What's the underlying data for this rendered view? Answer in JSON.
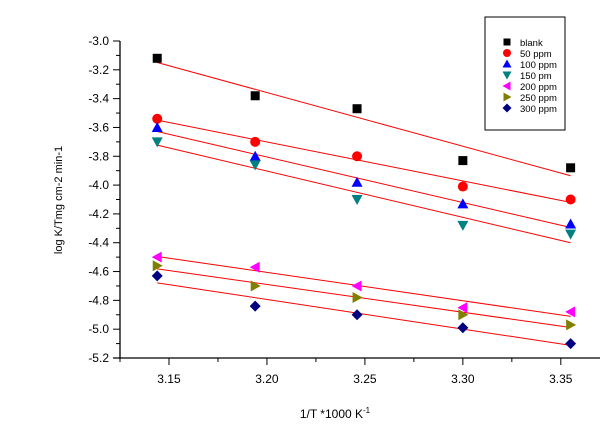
{
  "chart_data": {
    "type": "scatter",
    "title": "",
    "xlabel": "1/T *1000 K",
    "xlabel_superscript": "-1",
    "ylabel": "log K/Tmg cm-2 min-1",
    "xlim": [
      3.125,
      3.37
    ],
    "ylim": [
      -5.2,
      -3.0
    ],
    "xticks": [
      "3.15",
      "3.20",
      "3.25",
      "3.30",
      "3.35"
    ],
    "yticks": [
      "-3.0",
      "-3.2",
      "-3.4",
      "-3.6",
      "-3.8",
      "-4.0",
      "-4.2",
      "-4.4",
      "-4.6",
      "-4.8",
      "-5.0",
      "-5.2"
    ],
    "grid": false,
    "legend_placement": "top-right",
    "fit_line_color": "#ff0000",
    "x": [
      3.144,
      3.194,
      3.246,
      3.3,
      3.355
    ],
    "series": [
      {
        "name": "blank",
        "marker": "square",
        "color": "#000000",
        "values": [
          -3.12,
          -3.38,
          -3.47,
          -3.83,
          -3.88
        ]
      },
      {
        "name": "50 ppm",
        "marker": "circle",
        "color": "#ff0000",
        "values": [
          -3.54,
          -3.7,
          -3.8,
          -4.01,
          -4.1
        ]
      },
      {
        "name": "100 ppm",
        "marker": "triangle-up",
        "color": "#0000ff",
        "values": [
          -3.6,
          -3.8,
          -3.98,
          -4.13,
          -4.27
        ]
      },
      {
        "name": "150 pm",
        "marker": "triangle-down",
        "color": "#008080",
        "values": [
          -3.7,
          -3.86,
          -4.1,
          -4.28,
          -4.34
        ]
      },
      {
        "name": "200 ppm",
        "marker": "triangle-left",
        "color": "#ff00ff",
        "values": [
          -4.5,
          -4.57,
          -4.7,
          -4.85,
          -4.88
        ]
      },
      {
        "name": "250 ppm",
        "marker": "triangle-right",
        "color": "#808000",
        "values": [
          -4.56,
          -4.7,
          -4.78,
          -4.9,
          -4.97
        ]
      },
      {
        "name": "300 ppm",
        "marker": "diamond",
        "color": "#000080",
        "values": [
          -4.63,
          -4.84,
          -4.9,
          -4.99,
          -5.1
        ]
      }
    ]
  }
}
